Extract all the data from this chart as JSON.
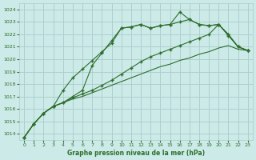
{
  "background_color": "#cceae7",
  "grid_color": "#aacccc",
  "line_color": "#2d6e2d",
  "title": "Graphe pression niveau de la mer (hPa)",
  "xlim": [
    -0.5,
    23.5
  ],
  "ylim": [
    1013.5,
    1024.5
  ],
  "yticks": [
    1014,
    1015,
    1016,
    1017,
    1018,
    1019,
    1020,
    1021,
    1022,
    1023,
    1024
  ],
  "xticks": [
    0,
    1,
    2,
    3,
    4,
    5,
    6,
    7,
    8,
    9,
    10,
    11,
    12,
    13,
    14,
    15,
    16,
    17,
    18,
    19,
    20,
    21,
    22,
    23
  ],
  "series": [
    {
      "x": [
        0,
        1,
        2,
        3,
        4,
        5,
        6,
        7,
        8,
        9,
        10,
        11,
        12,
        13,
        14,
        15,
        16,
        17,
        18,
        19,
        20,
        21,
        22,
        23
      ],
      "y": [
        1013.7,
        1014.8,
        1015.65,
        1016.2,
        1016.5,
        1016.8,
        1017.0,
        1017.3,
        1017.6,
        1017.9,
        1018.2,
        1018.5,
        1018.8,
        1019.1,
        1019.4,
        1019.6,
        1019.9,
        1020.1,
        1020.4,
        1020.6,
        1020.9,
        1021.1,
        1020.8,
        1020.7
      ],
      "marker": false
    },
    {
      "x": [
        0,
        1,
        2,
        3,
        4,
        5,
        6,
        7,
        8,
        9,
        10,
        11,
        12,
        13,
        14,
        15,
        16,
        17,
        18,
        19,
        20,
        21,
        22,
        23
      ],
      "y": [
        1013.7,
        1014.8,
        1015.65,
        1016.2,
        1016.5,
        1016.9,
        1017.2,
        1017.5,
        1017.9,
        1018.3,
        1018.8,
        1019.3,
        1019.8,
        1020.2,
        1020.5,
        1020.8,
        1021.1,
        1021.4,
        1021.7,
        1022.0,
        1022.8,
        1021.9,
        1021.0,
        1020.7
      ],
      "marker": true
    },
    {
      "x": [
        0,
        1,
        2,
        3,
        4,
        5,
        6,
        7,
        8,
        9,
        10,
        11,
        12,
        13,
        14,
        15,
        16,
        17,
        18,
        19,
        20,
        21,
        22,
        23
      ],
      "y": [
        1013.7,
        1014.8,
        1015.65,
        1016.2,
        1017.5,
        1018.5,
        1019.2,
        1019.9,
        1020.6,
        1021.3,
        1022.5,
        1022.6,
        1022.8,
        1022.5,
        1022.7,
        1022.8,
        1023.0,
        1023.2,
        1022.8,
        1022.7,
        1022.8,
        1022.0,
        1021.0,
        1020.7
      ],
      "marker": true
    },
    {
      "x": [
        0,
        1,
        2,
        3,
        4,
        5,
        6,
        7,
        8,
        9,
        10,
        11,
        12,
        13,
        14,
        15,
        16,
        17,
        18,
        19,
        20,
        21,
        22,
        23
      ],
      "y": [
        1013.7,
        1014.8,
        1015.65,
        1016.2,
        1016.5,
        1017.0,
        1017.5,
        1019.5,
        1020.5,
        1021.5,
        1022.5,
        1022.6,
        1022.8,
        1022.5,
        1022.7,
        1022.8,
        1023.8,
        1023.2,
        1022.8,
        1022.7,
        1022.8,
        1022.0,
        1021.0,
        1020.7
      ],
      "marker": true
    }
  ]
}
